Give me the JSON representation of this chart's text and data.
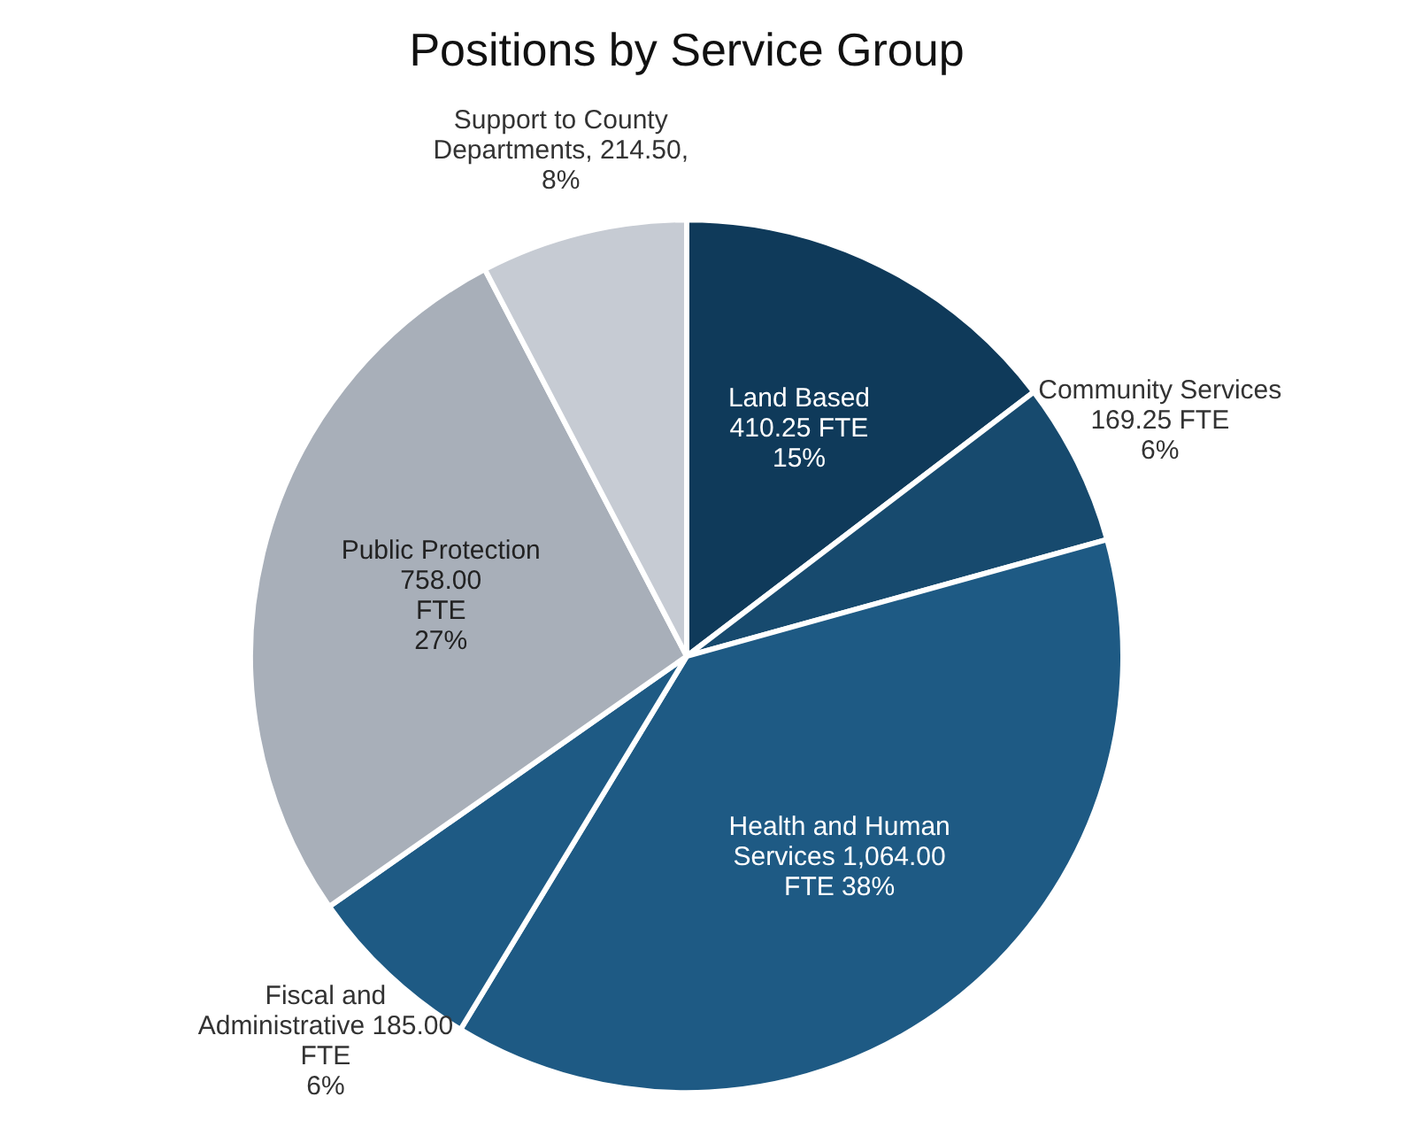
{
  "chart_data": {
    "type": "pie",
    "title": "Positions by Service Group",
    "categories": [
      "Land Based",
      "Community Services",
      "Health and Human Services",
      "Fiscal and Administrative",
      "Public Protection",
      "Support to County Departments"
    ],
    "values": [
      410.25,
      169.25,
      1064.0,
      185.0,
      758.0,
      214.5
    ],
    "colors": [
      "#0f3a5a",
      "#174a6e",
      "#1e5a84",
      "#1e5a84",
      "#a8afb9",
      "#c6cbd3"
    ],
    "value_labels": [
      "410.25 FTE\n15%",
      "169.25 FTE\n6%",
      "1,064.00\nFTE 38%",
      "185.00\nFTE\n6%",
      "758.00\nFTE\n27%",
      ", 214.50,\n8%"
    ],
    "legend": false
  }
}
